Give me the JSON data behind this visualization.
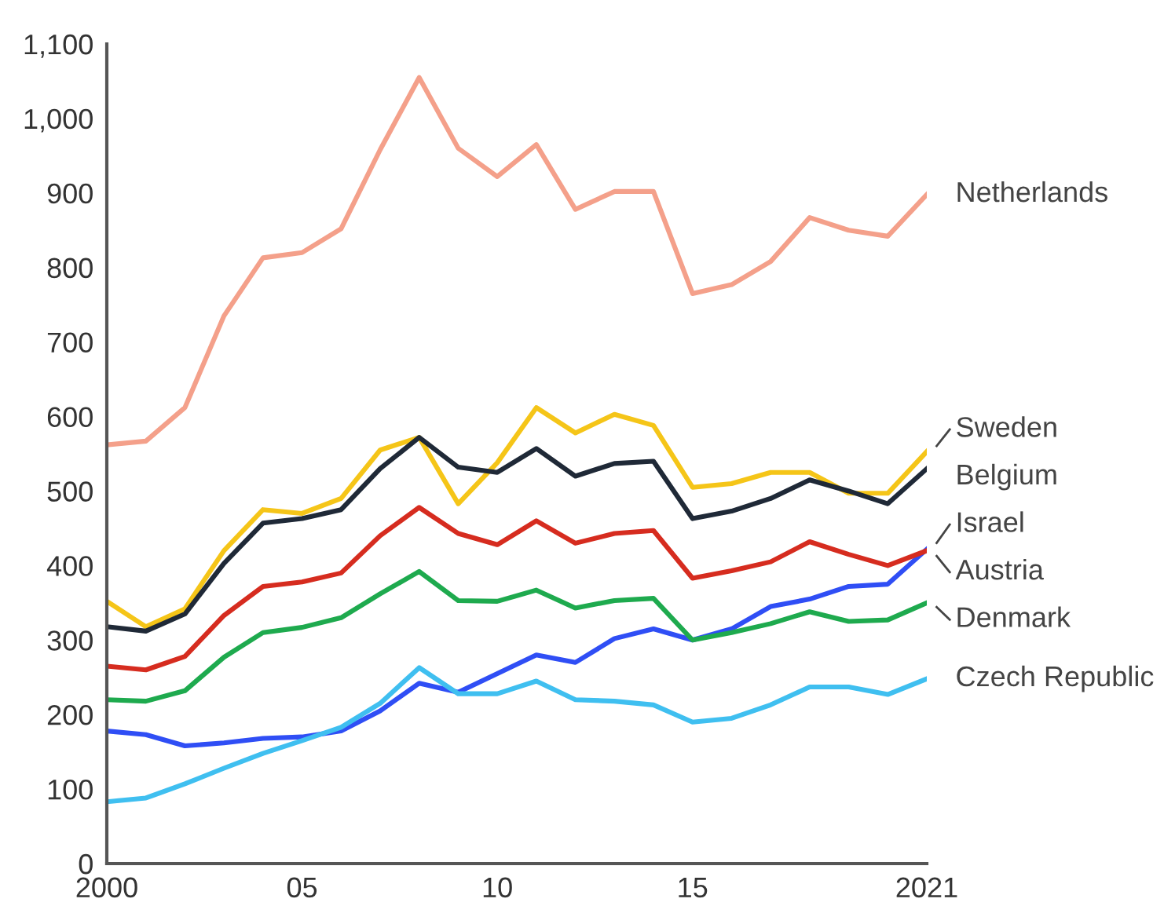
{
  "chart_data": {
    "type": "line",
    "x": [
      2000,
      2001,
      2002,
      2003,
      2004,
      2005,
      2006,
      2007,
      2008,
      2009,
      2010,
      2011,
      2012,
      2013,
      2014,
      2015,
      2016,
      2017,
      2018,
      2019,
      2020,
      2021
    ],
    "xlim": [
      2000,
      2021
    ],
    "xticks": [
      2000,
      {
        "value": 2005,
        "label": "05"
      },
      {
        "value": 2010,
        "label": "10"
      },
      {
        "value": 2015,
        "label": "15"
      },
      2021
    ],
    "ylim": [
      0,
      1100
    ],
    "yticks": [
      0,
      100,
      200,
      300,
      400,
      500,
      600,
      700,
      800,
      900,
      {
        "value": 1000,
        "label": "1,000"
      },
      {
        "value": 1100,
        "label": "1,100"
      }
    ],
    "grid": false,
    "legend": false,
    "marker": "none",
    "line_style": "solid",
    "series": [
      {
        "name": "Netherlands",
        "color": "#f4a08a",
        "values": [
          562,
          567,
          612,
          735,
          813,
          820,
          852,
          958,
          1055,
          960,
          922,
          965,
          878,
          902,
          902,
          765,
          777,
          808,
          867,
          850,
          842,
          898
        ]
      },
      {
        "name": "Sweden",
        "color": "#f5c518",
        "values": [
          352,
          318,
          342,
          420,
          475,
          470,
          490,
          555,
          572,
          483,
          538,
          612,
          578,
          603,
          588,
          505,
          510,
          525,
          525,
          497,
          497,
          553
        ]
      },
      {
        "name": "Belgium",
        "color": "#1f2937",
        "values": [
          318,
          312,
          335,
          403,
          457,
          463,
          475,
          530,
          572,
          532,
          525,
          557,
          520,
          537,
          540,
          463,
          473,
          490,
          515,
          500,
          483,
          530
        ]
      },
      {
        "name": "Israel",
        "color": "#2f4ef5",
        "values": [
          178,
          173,
          158,
          162,
          168,
          170,
          178,
          205,
          242,
          230,
          255,
          280,
          270,
          302,
          315,
          300,
          315,
          345,
          355,
          372,
          375,
          422
        ]
      },
      {
        "name": "Austria",
        "color": "#d62c1f",
        "values": [
          265,
          260,
          278,
          333,
          372,
          378,
          390,
          440,
          478,
          443,
          428,
          460,
          430,
          443,
          447,
          383,
          393,
          405,
          432,
          415,
          400,
          420
        ]
      },
      {
        "name": "Denmark",
        "color": "#1eaa4e",
        "values": [
          220,
          218,
          232,
          277,
          310,
          317,
          330,
          362,
          392,
          353,
          352,
          367,
          343,
          353,
          356,
          300,
          310,
          322,
          338,
          325,
          327,
          350
        ]
      },
      {
        "name": "Czech Republic",
        "color": "#3fbff0",
        "values": [
          83,
          88,
          107,
          128,
          148,
          165,
          183,
          215,
          263,
          228,
          228,
          245,
          220,
          218,
          213,
          190,
          195,
          213,
          237,
          237,
          227,
          248
        ]
      }
    ]
  }
}
